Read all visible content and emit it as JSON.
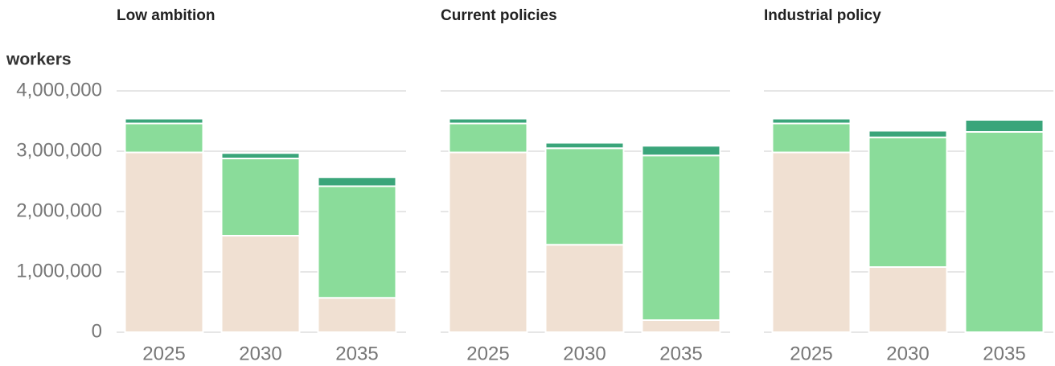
{
  "chart_data": [
    {
      "type": "bar",
      "stacked": true,
      "title": "Low ambition",
      "y_label": "workers",
      "categories": [
        "2025",
        "2030",
        "2035"
      ],
      "series": [
        {
          "color": "#f0e0d2",
          "values": [
            2980000,
            1600000,
            570000
          ]
        },
        {
          "color": "#8adc9a",
          "values": [
            480000,
            1280000,
            1850000
          ]
        },
        {
          "color": "#3aa57a",
          "values": [
            80000,
            90000,
            150000
          ]
        }
      ],
      "ylim": [
        0,
        4000000
      ],
      "yticks": [
        0,
        {
          "value": 1000000,
          "label": "1,000,000"
        },
        {
          "value": 2000000,
          "label": "2,000,000"
        },
        {
          "value": 3000000,
          "label": "3,000,000"
        },
        {
          "value": 4000000,
          "label": "4,000,000"
        }
      ],
      "grid": true
    },
    {
      "type": "bar",
      "stacked": true,
      "title": "Current policies",
      "categories": [
        "2025",
        "2030",
        "2035"
      ],
      "series": [
        {
          "color": "#f0e0d2",
          "values": [
            2980000,
            1450000,
            200000
          ]
        },
        {
          "color": "#8adc9a",
          "values": [
            480000,
            1600000,
            2730000
          ]
        },
        {
          "color": "#3aa57a",
          "values": [
            80000,
            90000,
            160000
          ]
        }
      ],
      "ylim": [
        0,
        4000000
      ],
      "yticks": [
        0,
        1000000,
        2000000,
        3000000,
        4000000
      ],
      "grid": true
    },
    {
      "type": "bar",
      "stacked": true,
      "title": "Industrial policy",
      "categories": [
        "2025",
        "2030",
        "2035"
      ],
      "series": [
        {
          "color": "#f0e0d2",
          "values": [
            2980000,
            1080000,
            0
          ]
        },
        {
          "color": "#8adc9a",
          "values": [
            480000,
            2150000,
            3320000
          ]
        },
        {
          "color": "#3aa57a",
          "values": [
            80000,
            110000,
            200000
          ]
        }
      ],
      "ylim": [
        0,
        4000000
      ],
      "yticks": [
        0,
        1000000,
        2000000,
        3000000,
        4000000
      ],
      "grid": true
    }
  ]
}
